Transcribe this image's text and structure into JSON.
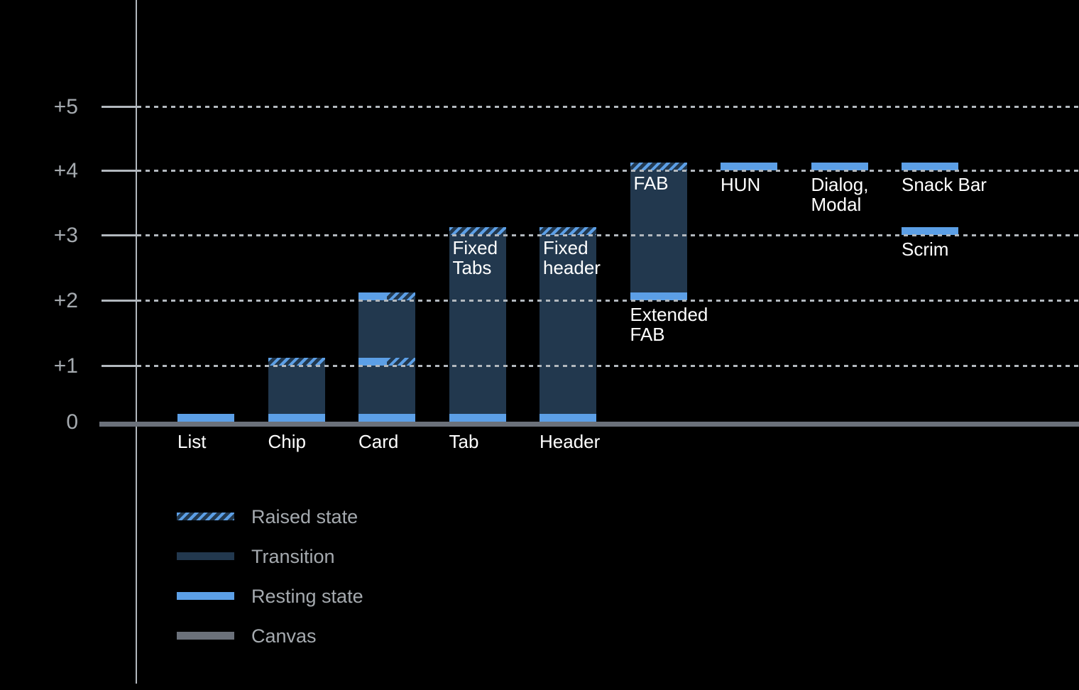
{
  "chart_data": {
    "type": "bar",
    "subtype": "elevation-levels",
    "background": "#000000",
    "colors": {
      "resting_blue": "#5c9fe6",
      "transition_navy": "#22384e",
      "canvas_gray": "#6b717a",
      "grid_gray": "#b2b8be",
      "text_gray": "#a5aaaf",
      "label_white": "#ffffff"
    },
    "y_axis": {
      "range": [
        0,
        5
      ],
      "gridlines": "dotted",
      "ticks": [
        {
          "level": 5,
          "label": "+5"
        },
        {
          "level": 4,
          "label": "+4"
        },
        {
          "level": 3,
          "label": "+3"
        },
        {
          "level": 2,
          "label": "+2"
        },
        {
          "level": 1,
          "label": "+1"
        },
        {
          "level": 0,
          "label": "0"
        }
      ]
    },
    "components": [
      {
        "name": "List",
        "slot": 0,
        "transition": null,
        "bands": [
          {
            "level": 0,
            "type": "resting"
          }
        ],
        "label": {
          "lines": [
            "List"
          ],
          "below_level": 0
        },
        "inner_label": null
      },
      {
        "name": "Chip",
        "slot": 1,
        "transition": [
          0,
          1
        ],
        "bands": [
          {
            "level": 0,
            "type": "resting"
          },
          {
            "level": 1,
            "type": "raised"
          }
        ],
        "label": {
          "lines": [
            "Chip"
          ],
          "below_level": 0
        },
        "inner_label": null
      },
      {
        "name": "Card",
        "slot": 2,
        "transition": [
          0,
          2
        ],
        "bands": [
          {
            "level": 0,
            "type": "resting"
          },
          {
            "level": 1,
            "type": "split"
          },
          {
            "level": 2,
            "type": "split"
          }
        ],
        "label": {
          "lines": [
            "Card"
          ],
          "below_level": 0
        },
        "inner_label": null
      },
      {
        "name": "Tab",
        "slot": 3,
        "transition": [
          0,
          3
        ],
        "bands": [
          {
            "level": 0,
            "type": "resting"
          },
          {
            "level": 3,
            "type": "raised"
          }
        ],
        "label": {
          "lines": [
            "Tab"
          ],
          "below_level": 0
        },
        "inner_label": {
          "lines": [
            "Fixed",
            "Tabs"
          ],
          "at_level": 3
        }
      },
      {
        "name": "Header",
        "slot": 4,
        "transition": [
          0,
          3
        ],
        "bands": [
          {
            "level": 0,
            "type": "resting"
          },
          {
            "level": 3,
            "type": "raised"
          }
        ],
        "label": {
          "lines": [
            "Header"
          ],
          "below_level": 0
        },
        "inner_label": {
          "lines": [
            "Fixed",
            "header"
          ],
          "at_level": 3
        }
      },
      {
        "name": "Extended FAB",
        "slot": 5,
        "transition": [
          2,
          4
        ],
        "bands": [
          {
            "level": 2,
            "type": "resting"
          },
          {
            "level": 4,
            "type": "raised"
          }
        ],
        "label": {
          "lines": [
            "Extended",
            "FAB"
          ],
          "below_level": 2
        },
        "inner_label": {
          "lines": [
            "FAB"
          ],
          "at_level": 4
        }
      },
      {
        "name": "HUN",
        "slot": 6,
        "transition": null,
        "bands": [
          {
            "level": 4,
            "type": "resting"
          }
        ],
        "label": {
          "lines": [
            "HUN"
          ],
          "below_level": 4
        },
        "inner_label": null
      },
      {
        "name": "Dialog, Modal",
        "slot": 7,
        "transition": null,
        "bands": [
          {
            "level": 4,
            "type": "resting"
          }
        ],
        "label": {
          "lines": [
            "Dialog,",
            "Modal"
          ],
          "below_level": 4
        },
        "inner_label": null
      },
      {
        "name": "Snack Bar",
        "slot": 8,
        "transition": null,
        "bands": [
          {
            "level": 4,
            "type": "resting"
          }
        ],
        "label": {
          "lines": [
            "Snack Bar"
          ],
          "below_level": 4
        },
        "inner_label": null
      },
      {
        "name": "Scrim",
        "slot": 8,
        "transition": null,
        "bands": [
          {
            "level": 3,
            "type": "resting"
          }
        ],
        "label": {
          "lines": [
            "Scrim"
          ],
          "below_level": 3
        },
        "inner_label": null
      }
    ],
    "legend": {
      "rows": [
        {
          "label": "Raised state",
          "swatch": "raised"
        },
        {
          "label": "Transition",
          "swatch": "transition"
        },
        {
          "label": "Resting state",
          "swatch": "resting"
        },
        {
          "label": "Canvas",
          "swatch": "canvas"
        }
      ]
    }
  }
}
